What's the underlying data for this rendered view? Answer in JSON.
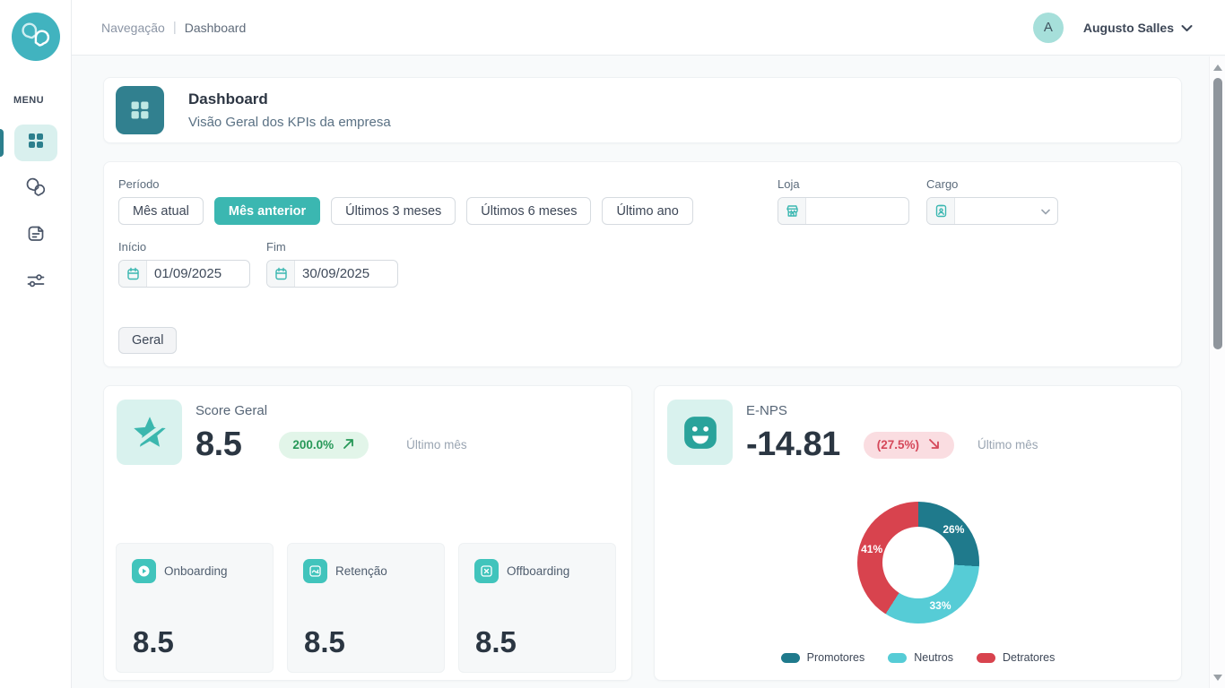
{
  "sidebar": {
    "menu_label": "MENU",
    "items": [
      {
        "name": "dashboard",
        "icon": "grid-icon",
        "active": true
      },
      {
        "name": "conversas",
        "icon": "chat-bubble-icon",
        "active": false
      },
      {
        "name": "relatorios",
        "icon": "document-icon",
        "active": false
      },
      {
        "name": "configuracoes",
        "icon": "sliders-icon",
        "active": false
      }
    ]
  },
  "topbar": {
    "breadcrumb": {
      "section": "Navegação",
      "separator": "|",
      "current": "Dashboard"
    },
    "user": {
      "initial": "A",
      "name": "Augusto Salles"
    }
  },
  "header": {
    "title": "Dashboard",
    "subtitle": "Visão Geral dos KPIs da empresa"
  },
  "filters": {
    "period_label": "Período",
    "period_options": [
      {
        "label": "Mês atual",
        "active": false
      },
      {
        "label": "Mês anterior",
        "active": true
      },
      {
        "label": "Últimos 3 meses",
        "active": false
      },
      {
        "label": "Últimos 6 meses",
        "active": false
      },
      {
        "label": "Último ano",
        "active": false
      }
    ],
    "loja": {
      "label": "Loja",
      "value": "",
      "icon": "store-icon"
    },
    "cargo": {
      "label": "Cargo",
      "value": "",
      "icon": "id-badge-icon"
    },
    "inicio": {
      "label": "Início",
      "value": "01/09/2025",
      "icon": "calendar-icon"
    },
    "fim": {
      "label": "Fim",
      "value": "30/09/2025",
      "icon": "calendar-icon"
    },
    "geral_button": "Geral"
  },
  "score_card": {
    "title": "Score Geral",
    "value": "8.5",
    "badge": {
      "text": "200.0%",
      "trend": "up",
      "color": "#279858",
      "bg": "#e2f5e9"
    },
    "period_note": "Último mês",
    "subcards": [
      {
        "label": "Onboarding",
        "value": "8.5",
        "icon": "play-circle-icon"
      },
      {
        "label": "Retenção",
        "value": "8.5",
        "icon": "trend-chart-icon"
      },
      {
        "label": "Offboarding",
        "value": "8.5",
        "icon": "square-x-icon"
      }
    ]
  },
  "enps_card": {
    "title": "E-NPS",
    "value": "-14.81",
    "badge": {
      "text": "(27.5%)",
      "trend": "down",
      "color": "#d5485a",
      "bg": "#fadde1"
    },
    "period_note": "Último mês"
  },
  "chart_data": {
    "type": "pie",
    "donut": true,
    "title": "E-NPS",
    "labels": [
      "Promotores",
      "Neutros",
      "Detratores"
    ],
    "values": [
      26,
      33,
      41
    ],
    "value_format": "percent",
    "colors": [
      "#1f7a8c",
      "#56ccd6",
      "#d8434e"
    ],
    "legend_position": "bottom",
    "data_labels": [
      "26%",
      "33%",
      "41%"
    ]
  },
  "colors": {
    "brand_teal": "#41b3bf",
    "dark_teal": "#2c7f8d",
    "active_button_teal": "#3bb7b1",
    "subcard_icon_teal": "#41c4bc",
    "light_teal_bg": "#d9f2ee",
    "text_dark": "#2b3642",
    "text_gray": "#5b6b7b",
    "text_light": "#9aa5b2",
    "page_bg": "#f8fafb"
  }
}
